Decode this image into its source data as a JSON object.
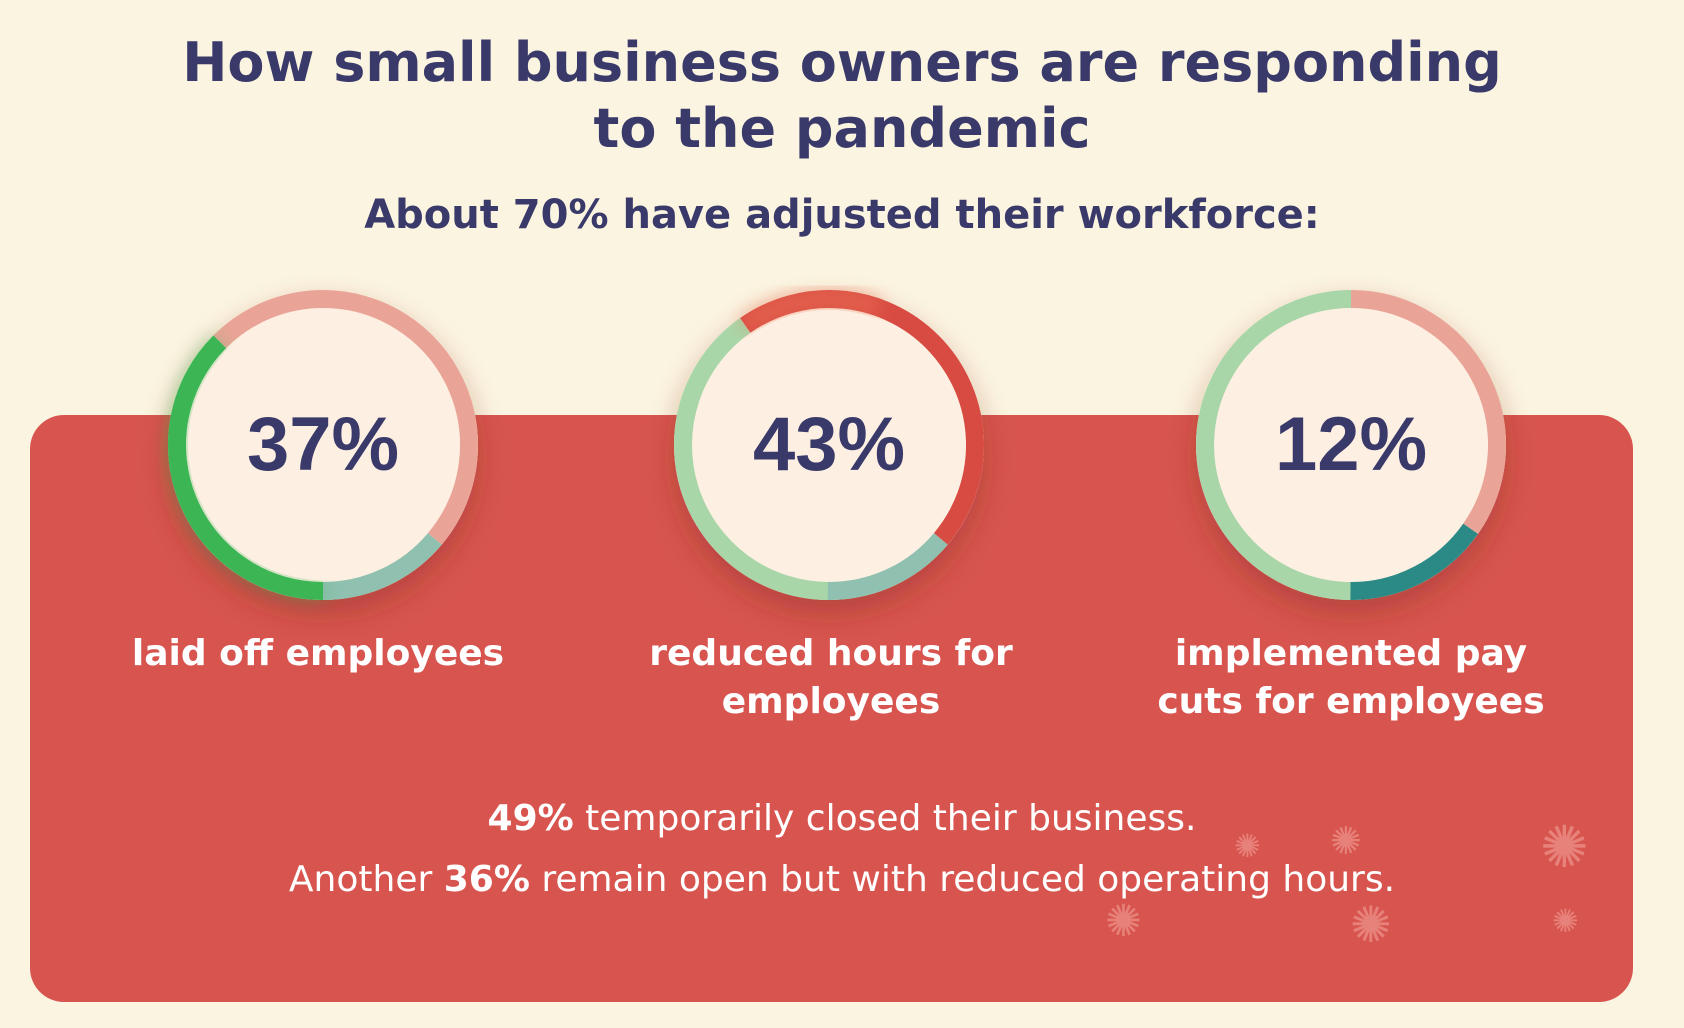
{
  "header": {
    "title_line1": "How small business owners are responding",
    "title_line2": "to the pandemic",
    "subtitle": "About 70% have adjusted their workforce:"
  },
  "chart_data": [
    {
      "type": "pie",
      "style": "donut",
      "value": 37,
      "display": "37%",
      "label": "laid off employees",
      "label_lines": [
        "laid off employees"
      ],
      "colors": {
        "value": "#3cb554",
        "secondary": "#8fc0b0",
        "track": "#eaa497"
      }
    },
    {
      "type": "pie",
      "style": "donut",
      "value": 43,
      "display": "43%",
      "label": "reduced hours for employees",
      "label_lines": [
        "reduced hours for",
        "employees"
      ],
      "colors": {
        "value": "#d84b42",
        "secondary": "#a9d6a8",
        "highlight": "#f07a5a"
      }
    },
    {
      "type": "pie",
      "style": "donut",
      "value": 12,
      "display": "12%",
      "label": "implemented pay cuts for employees",
      "label_lines": [
        "implemented pay",
        "cuts for employees"
      ],
      "colors": {
        "value": "#2c8a86",
        "secondary": "#a9d6a8",
        "track": "#eaa497"
      }
    }
  ],
  "notes": {
    "line1_bold": "49%",
    "line1_rest": " temporarily closed their business.",
    "line2_start": "Another ",
    "line2_bold": "36%",
    "line2_rest": " remain open but with reduced operating hours."
  },
  "colors": {
    "background": "#fbf4e0",
    "panel": "#d8554f",
    "title": "#39396a",
    "inner_circle": "#fdf0e2"
  },
  "icons": [
    "virus-icon"
  ]
}
